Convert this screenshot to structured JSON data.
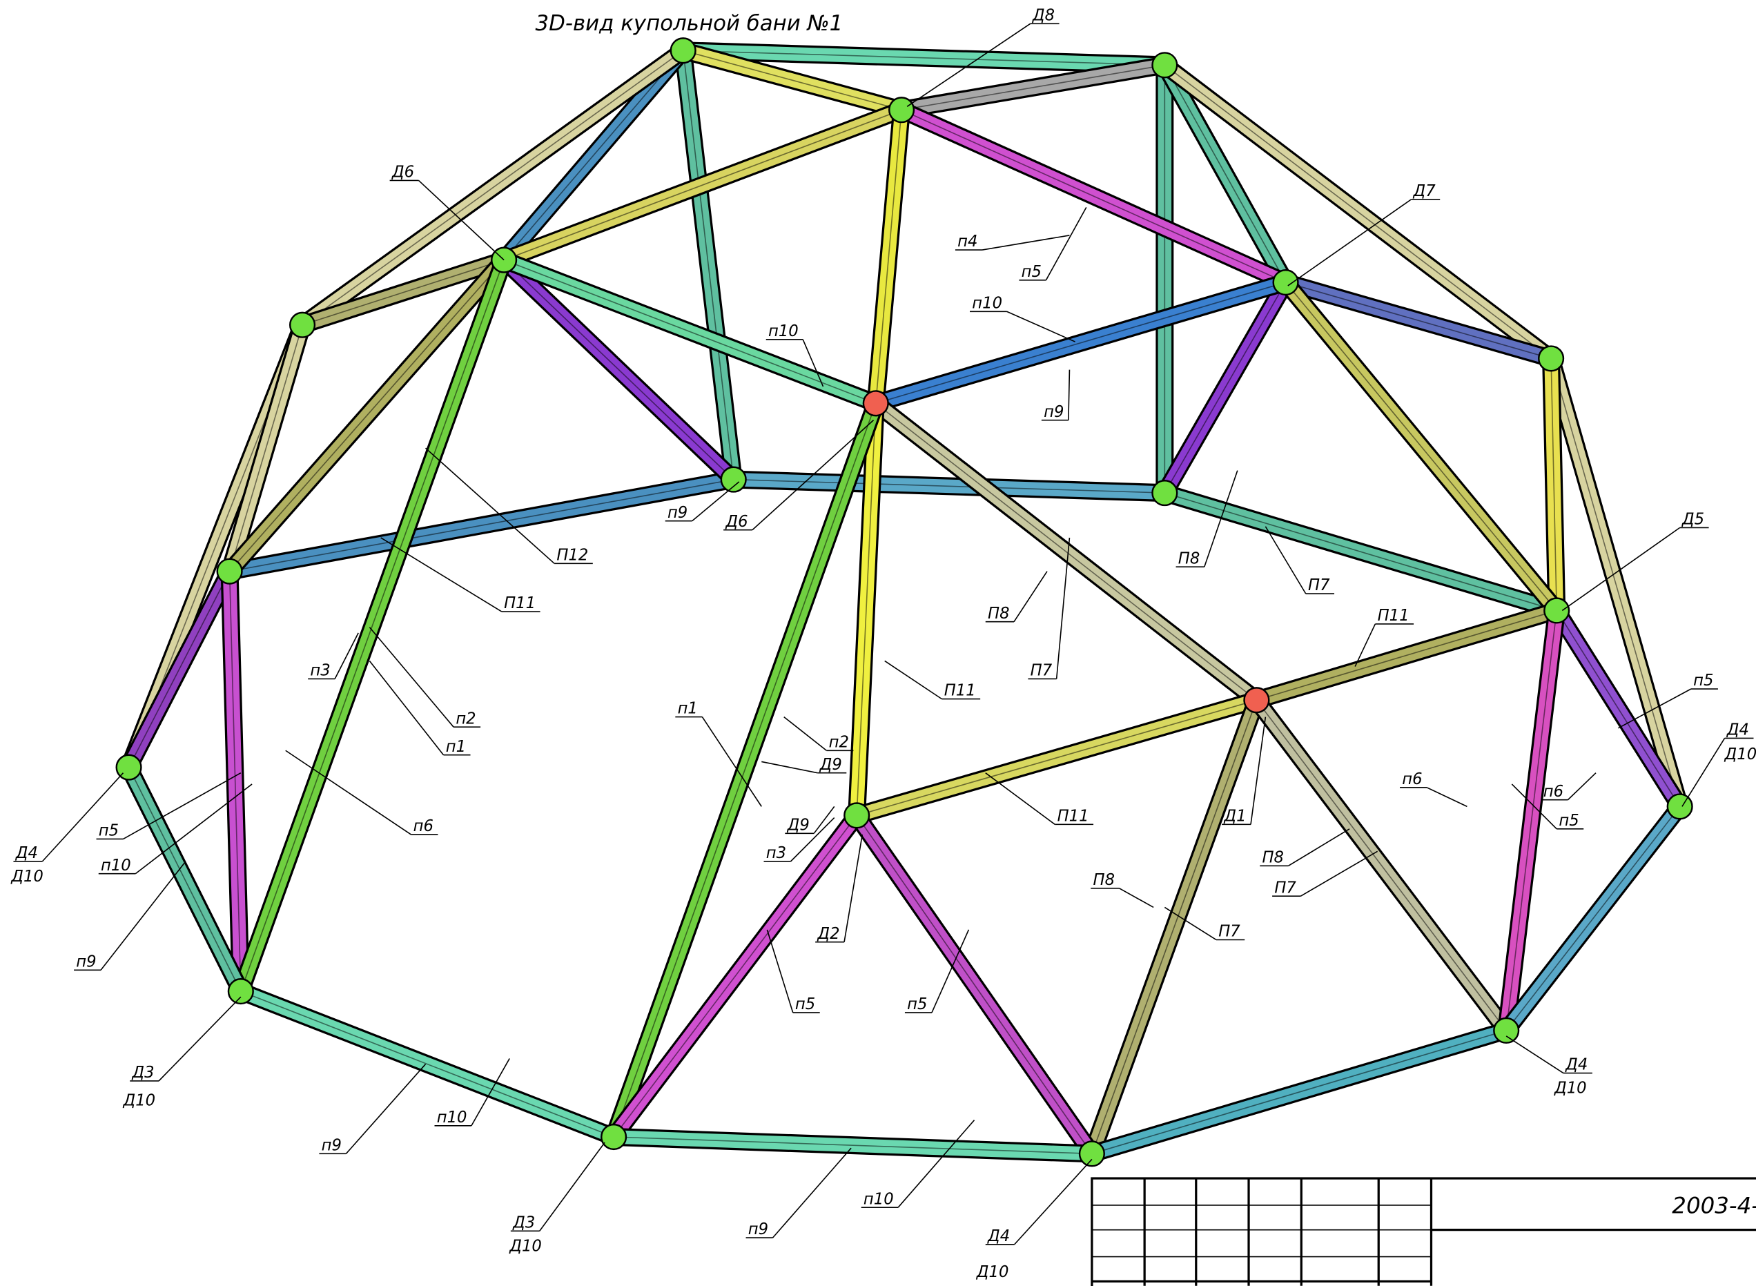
{
  "title": "3D-вид купольной бани №1",
  "labels": [
    "Д8",
    "Д6",
    "Д7",
    "п4",
    "п5",
    "п10",
    "п10",
    "п9",
    "п9",
    "Д6",
    "П12",
    "П11",
    "П8",
    "П7",
    "Д5",
    "П11",
    "П8",
    "П7",
    "п3",
    "П11",
    "п5",
    "п2",
    "п1",
    "п1",
    "п2",
    "Д4",
    "Д10",
    "Д9",
    "п6",
    "п6",
    "п6",
    "Д4",
    "Д10",
    "п5",
    "п10",
    "Д9",
    "п5",
    "П11",
    "Д1",
    "п3",
    "П8",
    "П7",
    "П8",
    "П7",
    "Д2",
    "п9",
    "п5",
    "п5",
    "Д3",
    "Д10",
    "Д4",
    "Д10",
    "п10",
    "п9",
    "п10",
    "п9",
    "Д3",
    "Д10",
    "Д4",
    "Д10"
  ],
  "stamp": {
    "code": "2003-4-"
  }
}
